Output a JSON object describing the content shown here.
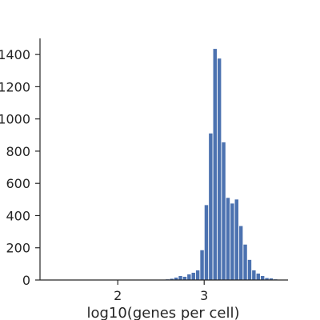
{
  "chart_data": {
    "type": "bar",
    "title": "",
    "xlabel": "log10(genes per cell)",
    "ylabel": "",
    "xlim": [
      1.1,
      3.97
    ],
    "ylim": [
      0,
      1500
    ],
    "xticks": [
      2,
      3
    ],
    "yticks": [
      0,
      200,
      400,
      600,
      800,
      1000,
      1200,
      1400
    ],
    "xtick_labels": [
      "2",
      "3"
    ],
    "ytick_labels": [
      "0",
      "200",
      "400",
      "600",
      "800",
      "1000",
      "1200",
      "1400"
    ],
    "bin_width": 0.0505,
    "series": [
      {
        "name": "log10(genes per cell)",
        "color": "#4c72b0",
        "bin_starts": [
          2.55,
          2.6,
          2.65,
          2.7,
          2.75,
          2.8,
          2.85,
          2.9,
          2.95,
          3.0,
          3.05,
          3.1,
          3.15,
          3.2,
          3.25,
          3.3,
          3.35,
          3.4,
          3.45,
          3.5,
          3.55,
          3.6,
          3.65,
          3.7,
          3.75,
          3.8
        ],
        "values": [
          4,
          8,
          15,
          25,
          20,
          35,
          45,
          60,
          185,
          465,
          910,
          1435,
          1375,
          855,
          510,
          475,
          500,
          335,
          220,
          125,
          60,
          40,
          25,
          12,
          10,
          4
        ]
      }
    ]
  }
}
